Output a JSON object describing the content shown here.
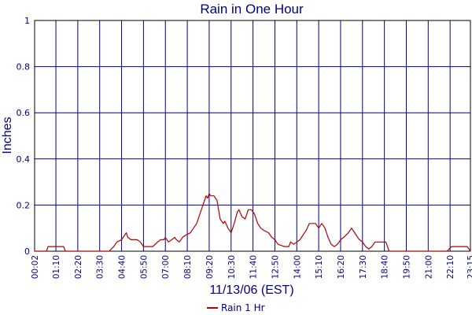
{
  "colors": {
    "background": "#ffffff",
    "plot_border": "#000000",
    "grid": "#000080",
    "text": "#000080",
    "series": "#b00000"
  },
  "chart_data": {
    "type": "line",
    "title": "Rain in One Hour",
    "xlabel": "11/13/06 (EST)",
    "ylabel": "Inches",
    "ylim": [
      0,
      1
    ],
    "yticks": [
      0,
      0.2,
      0.4,
      0.6,
      0.8,
      1
    ],
    "ytick_labels": [
      "0",
      "0.2",
      "0.4",
      "0.6",
      "0.8",
      "1"
    ],
    "xlim": [
      "00:02",
      "23:15"
    ],
    "xtick_labels": [
      "00:02",
      "01:10",
      "02:20",
      "03:30",
      "04:40",
      "05:50",
      "07:00",
      "08:10",
      "09:20",
      "10:30",
      "11:40",
      "12:50",
      "14:00",
      "15:10",
      "16:20",
      "17:30",
      "18:40",
      "19:50",
      "21:00",
      "22:10",
      "23:15"
    ],
    "grid": true,
    "legend": "bottom-center",
    "series": [
      {
        "name": "Rain 1 Hr",
        "points": [
          [
            "00:02",
            0
          ],
          [
            "00:40",
            0
          ],
          [
            "00:45",
            0.02
          ],
          [
            "01:35",
            0.02
          ],
          [
            "01:40",
            0
          ],
          [
            "04:00",
            0
          ],
          [
            "04:15",
            0.02
          ],
          [
            "04:25",
            0.04
          ],
          [
            "04:40",
            0.05
          ],
          [
            "04:50",
            0.07
          ],
          [
            "04:55",
            0.08
          ],
          [
            "05:00",
            0.06
          ],
          [
            "05:10",
            0.05
          ],
          [
            "05:30",
            0.05
          ],
          [
            "05:40",
            0.04
          ],
          [
            "05:50",
            0.02
          ],
          [
            "06:20",
            0.02
          ],
          [
            "06:35",
            0.04
          ],
          [
            "06:45",
            0.05
          ],
          [
            "06:55",
            0.05
          ],
          [
            "07:00",
            0.06
          ],
          [
            "07:10",
            0.04
          ],
          [
            "07:20",
            0.05
          ],
          [
            "07:30",
            0.06
          ],
          [
            "07:35",
            0.05
          ],
          [
            "07:45",
            0.04
          ],
          [
            "07:55",
            0.06
          ],
          [
            "08:05",
            0.07
          ],
          [
            "08:20",
            0.08
          ],
          [
            "08:30",
            0.1
          ],
          [
            "08:40",
            0.12
          ],
          [
            "08:50",
            0.16
          ],
          [
            "09:00",
            0.2
          ],
          [
            "09:05",
            0.22
          ],
          [
            "09:10",
            0.24
          ],
          [
            "09:15",
            0.23
          ],
          [
            "09:20",
            0.25
          ],
          [
            "09:25",
            0.24
          ],
          [
            "09:35",
            0.24
          ],
          [
            "09:45",
            0.22
          ],
          [
            "09:55",
            0.14
          ],
          [
            "10:05",
            0.12
          ],
          [
            "10:10",
            0.13
          ],
          [
            "10:20",
            0.1
          ],
          [
            "10:30",
            0.08
          ],
          [
            "10:40",
            0.12
          ],
          [
            "10:50",
            0.17
          ],
          [
            "10:55",
            0.18
          ],
          [
            "11:05",
            0.15
          ],
          [
            "11:15",
            0.14
          ],
          [
            "11:25",
            0.18
          ],
          [
            "11:35",
            0.18
          ],
          [
            "11:45",
            0.16
          ],
          [
            "11:55",
            0.12
          ],
          [
            "12:05",
            0.1
          ],
          [
            "12:15",
            0.09
          ],
          [
            "12:30",
            0.08
          ],
          [
            "12:40",
            0.06
          ],
          [
            "12:50",
            0.05
          ],
          [
            "13:00",
            0.03
          ],
          [
            "13:20",
            0.02
          ],
          [
            "13:35",
            0.02
          ],
          [
            "13:40",
            0.04
          ],
          [
            "13:50",
            0.03
          ],
          [
            "14:00",
            0.04
          ],
          [
            "14:10",
            0.05
          ],
          [
            "14:20",
            0.07
          ],
          [
            "14:30",
            0.09
          ],
          [
            "14:40",
            0.12
          ],
          [
            "15:00",
            0.12
          ],
          [
            "15:10",
            0.1
          ],
          [
            "15:20",
            0.12
          ],
          [
            "15:30",
            0.1
          ],
          [
            "15:40",
            0.06
          ],
          [
            "15:50",
            0.03
          ],
          [
            "16:00",
            0.02
          ],
          [
            "16:10",
            0.03
          ],
          [
            "16:20",
            0.05
          ],
          [
            "16:30",
            0.06
          ],
          [
            "16:45",
            0.08
          ],
          [
            "16:55",
            0.1
          ],
          [
            "17:00",
            0.09
          ],
          [
            "17:10",
            0.07
          ],
          [
            "17:20",
            0.05
          ],
          [
            "17:30",
            0.04
          ],
          [
            "17:40",
            0.02
          ],
          [
            "17:50",
            0.01
          ],
          [
            "18:00",
            0.02
          ],
          [
            "18:10",
            0.04
          ],
          [
            "18:30",
            0.04
          ],
          [
            "18:45",
            0.04
          ],
          [
            "18:55",
            0
          ],
          [
            "22:00",
            0
          ],
          [
            "22:15",
            0.02
          ],
          [
            "22:45",
            0.02
          ],
          [
            "23:05",
            0.02
          ],
          [
            "23:15",
            0
          ]
        ]
      }
    ]
  }
}
